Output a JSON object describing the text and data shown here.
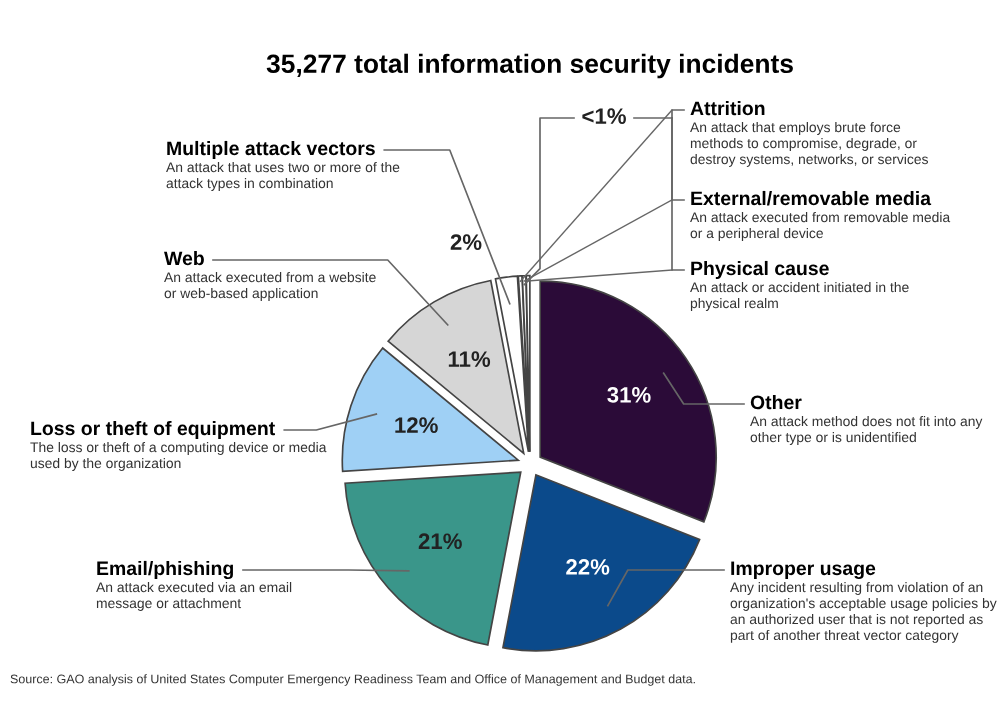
{
  "chart_data": {
    "type": "pie",
    "title": "35,277 total information security incidents",
    "categories": [
      "Other",
      "Improper usage",
      "Email/phishing",
      "Loss or theft of equipment",
      "Web",
      "Multiple attack vectors",
      "Attrition",
      "External/removable media",
      "Physical cause"
    ],
    "values": [
      31,
      22,
      21,
      12,
      11,
      2,
      0.34,
      0.33,
      0.33
    ],
    "value_labels": [
      "31%",
      "22%",
      "21%",
      "12%",
      "11%",
      "2%",
      "<1%",
      null,
      null
    ],
    "colors": [
      "#2b0b38",
      "#0b4a8b",
      "#3a968a",
      "#9fd0f5",
      "#d6d6d6",
      "#ffffff",
      "#ffffff",
      "#ffffff",
      "#ffffff"
    ],
    "annotations": [
      "An attack method does not fit into any\nother type or is unidentified",
      "Any incident resulting from violation of an\norganization's acceptable usage policies by\nan authorized user that is not reported as\npart of another threat vector category",
      "An attack executed via an email\nmessage or attachment",
      "The loss or theft of a computing device or media\nused by the organization",
      "An attack executed from a website\nor web-based application",
      "An attack that uses two or more of the\nattack types in combination",
      "An attack that employs brute force\nmethods to compromise, degrade, or\ndestroy systems, networks, or services",
      "An attack executed from removable media\nor a peripheral device",
      "An attack or accident initiated in the\nphysical realm",
      "Source: GAO analysis of United States Computer Emergency Readiness Team and Office of Management and Budget data."
    ]
  }
}
